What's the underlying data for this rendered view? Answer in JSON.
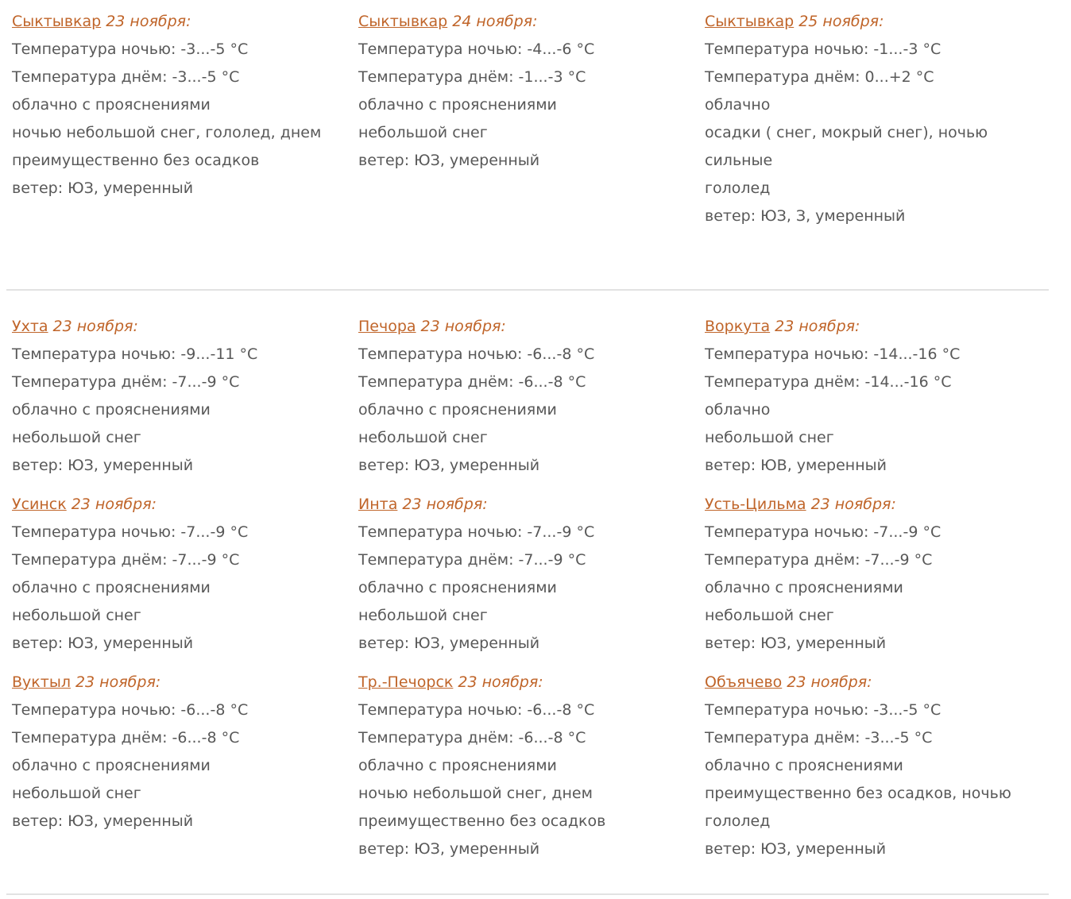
{
  "accent_color": "#c0652a",
  "text_color": "#585858",
  "sections": [
    {
      "cards": [
        {
          "city": "Сыктывкар",
          "date": "23 ноября:",
          "lines": [
            "Температура ночью: -3...-5 °C",
            "Температура днём: -3...-5 °C",
            "облачно с прояснениями",
            "ночью небольшой снег, гололед, днем преимущественно без осадков",
            "ветер: ЮЗ, умеренный"
          ]
        },
        {
          "city": "Сыктывкар",
          "date": "24 ноября:",
          "lines": [
            "Температура ночью: -4...-6 °C",
            "Температура днём: -1...-3 °C",
            "облачно с прояснениями",
            "небольшой снег",
            "ветер: ЮЗ, умеренный"
          ]
        },
        {
          "city": "Сыктывкар",
          "date": "25 ноября:",
          "lines": [
            "Температура ночью: -1...-3 °C",
            "Температура днём: 0...+2 °C",
            "облачно",
            "осадки ( снег, мокрый снег), ночью сильные",
            "гололед",
            "ветер: ЮЗ, З, умеренный"
          ]
        }
      ]
    },
    {
      "cards": [
        {
          "city": "Ухта",
          "date": "23 ноября:",
          "lines": [
            "Температура ночью: -9...-11 °C",
            "Температура днём: -7...-9 °C",
            "облачно с прояснениями",
            "небольшой снег",
            "ветер: ЮЗ, умеренный"
          ]
        },
        {
          "city": "Печора",
          "date": "23 ноября:",
          "lines": [
            "Температура ночью: -6...-8 °C",
            "Температура днём: -6...-8 °C",
            "облачно с прояснениями",
            "небольшой снег",
            "ветер: ЮЗ, умеренный"
          ]
        },
        {
          "city": "Воркута",
          "date": "23 ноября:",
          "lines": [
            "Температура ночью: -14...-16 °C",
            "Температура днём: -14...-16 °C",
            "облачно",
            "небольшой снег",
            "ветер: ЮВ, умеренный"
          ]
        },
        {
          "city": "Усинск",
          "date": "23 ноября:",
          "lines": [
            "Температура ночью: -7...-9 °C",
            "Температура днём: -7...-9 °C",
            "облачно с прояснениями",
            "небольшой снег",
            "ветер: ЮЗ, умеренный"
          ]
        },
        {
          "city": "Инта",
          "date": "23 ноября:",
          "lines": [
            "Температура ночью: -7...-9 °C",
            "Температура днём: -7...-9 °C",
            "облачно с прояснениями",
            "небольшой снег",
            "ветер: ЮЗ, умеренный"
          ]
        },
        {
          "city": "Усть-Цильма",
          "date": "23 ноября:",
          "lines": [
            "Температура ночью: -7...-9 °C",
            "Температура днём: -7...-9 °C",
            "облачно с прояснениями",
            "небольшой снег",
            "ветер: ЮЗ, умеренный"
          ]
        },
        {
          "city": "Вуктыл",
          "date": "23 ноября:",
          "lines": [
            "Температура ночью: -6...-8 °C",
            "Температура днём: -6...-8 °C",
            "облачно с прояснениями",
            "небольшой снег",
            "ветер: ЮЗ, умеренный"
          ]
        },
        {
          "city": "Тр.-Печорск",
          "date": "23 ноября:",
          "lines": [
            "Температура ночью: -6...-8 °C",
            "Температура днём: -6...-8 °C",
            "облачно с прояснениями",
            "ночью небольшой снег, днем преимущественно без осадков",
            "ветер: ЮЗ, умеренный"
          ]
        },
        {
          "city": "Объячево",
          "date": "23 ноября:",
          "lines": [
            "Температура ночью: -3...-5 °C",
            "Температура днём: -3...-5 °C",
            "облачно с прояснениями",
            "преимущественно без осадков, ночью гололед",
            "ветер: ЮЗ, умеренный"
          ]
        }
      ]
    }
  ]
}
